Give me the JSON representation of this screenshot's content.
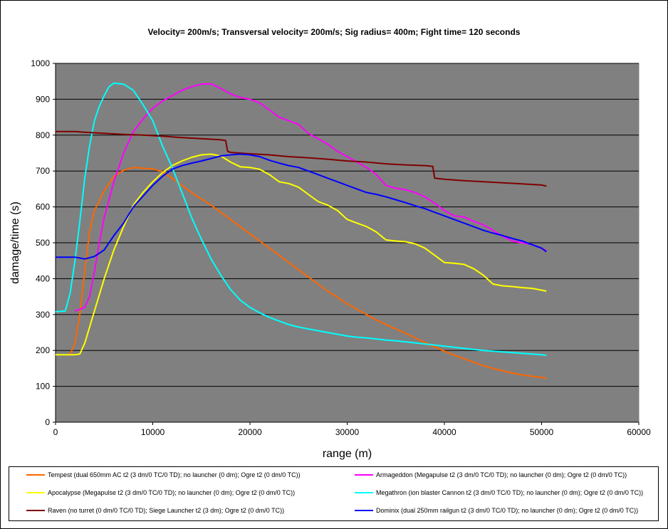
{
  "chart_data": {
    "type": "line",
    "title": "Velocity= 200m/s; Transversal velocity= 200m/s; Sig radius= 400m; Fight time= 120 seconds",
    "xlabel": "range (m)",
    "ylabel": "damage/time (s)",
    "xlim": [
      0,
      60000
    ],
    "ylim": [
      0,
      1000
    ],
    "xticks": [
      0,
      10000,
      20000,
      30000,
      40000,
      50000,
      60000
    ],
    "yticks": [
      0,
      100,
      200,
      300,
      400,
      500,
      600,
      700,
      800,
      900,
      1000
    ],
    "grid": true,
    "legend_position": "bottom",
    "series": [
      {
        "name": "Tempest (dual 650mm AC t2 (3 dm/0 TC/0 TD); no launcher (0 dm); Ogre t2 (0 dm/0 TC))",
        "color": "#FF6600",
        "points": [
          [
            1500,
            190
          ],
          [
            2000,
            220
          ],
          [
            2500,
            300
          ],
          [
            3000,
            420
          ],
          [
            3500,
            530
          ],
          [
            4000,
            590
          ],
          [
            5000,
            645
          ],
          [
            6000,
            685
          ],
          [
            7000,
            702
          ],
          [
            8000,
            710
          ],
          [
            9000,
            708
          ],
          [
            10000,
            706
          ],
          [
            11000,
            698
          ],
          [
            12000,
            680
          ],
          [
            13000,
            660
          ],
          [
            14000,
            640
          ],
          [
            15000,
            622
          ],
          [
            16000,
            605
          ],
          [
            17000,
            585
          ],
          [
            18000,
            565
          ],
          [
            19000,
            545
          ],
          [
            20000,
            525
          ],
          [
            21000,
            505
          ],
          [
            22000,
            485
          ],
          [
            23000,
            465
          ],
          [
            24000,
            445
          ],
          [
            25000,
            425
          ],
          [
            26000,
            405
          ],
          [
            27000,
            385
          ],
          [
            28000,
            365
          ],
          [
            29000,
            348
          ],
          [
            30000,
            330
          ],
          [
            31000,
            315
          ],
          [
            32000,
            300
          ],
          [
            33000,
            285
          ],
          [
            34000,
            272
          ],
          [
            35000,
            260
          ],
          [
            36000,
            248
          ],
          [
            37000,
            235
          ],
          [
            38000,
            222
          ],
          [
            39000,
            210
          ],
          [
            40000,
            198
          ],
          [
            41000,
            187
          ],
          [
            42000,
            177
          ],
          [
            43000,
            167
          ],
          [
            44000,
            158
          ],
          [
            45000,
            150
          ],
          [
            46000,
            143
          ],
          [
            47000,
            137
          ],
          [
            48000,
            132
          ],
          [
            49000,
            128
          ],
          [
            50000,
            125
          ],
          [
            50500,
            122
          ]
        ]
      },
      {
        "name": "Armageddon (Megapulse t2 (3 dm/0 TC/0 TD); no launcher (0 dm); Ogre t2 (0 dm/0 TC))",
        "color": "#FF00FF",
        "points": [
          [
            2000,
            310
          ],
          [
            3000,
            320
          ],
          [
            3500,
            350
          ],
          [
            4000,
            420
          ],
          [
            4500,
            500
          ],
          [
            5000,
            570
          ],
          [
            6000,
            670
          ],
          [
            7000,
            750
          ],
          [
            8000,
            810
          ],
          [
            9000,
            845
          ],
          [
            10000,
            875
          ],
          [
            11000,
            895
          ],
          [
            12000,
            910
          ],
          [
            13000,
            925
          ],
          [
            14000,
            935
          ],
          [
            15000,
            942
          ],
          [
            16000,
            943
          ],
          [
            17000,
            930
          ],
          [
            18000,
            915
          ],
          [
            19000,
            905
          ],
          [
            20000,
            900
          ],
          [
            21000,
            890
          ],
          [
            22000,
            870
          ],
          [
            23000,
            850
          ],
          [
            24000,
            840
          ],
          [
            25000,
            830
          ],
          [
            26000,
            805
          ],
          [
            27000,
            790
          ],
          [
            28000,
            775
          ],
          [
            29000,
            755
          ],
          [
            30000,
            740
          ],
          [
            31000,
            725
          ],
          [
            32000,
            710
          ],
          [
            33000,
            690
          ],
          [
            34000,
            660
          ],
          [
            35000,
            652
          ],
          [
            36000,
            648
          ],
          [
            37000,
            640
          ],
          [
            38000,
            628
          ],
          [
            39000,
            610
          ],
          [
            40000,
            590
          ],
          [
            41000,
            575
          ],
          [
            42000,
            572
          ],
          [
            43000,
            560
          ],
          [
            44000,
            550
          ],
          [
            45000,
            535
          ],
          [
            46000,
            518
          ],
          [
            47000,
            505
          ],
          [
            48000,
            500
          ],
          [
            49000,
            495
          ],
          [
            50000,
            485
          ],
          [
            50500,
            478
          ]
        ]
      },
      {
        "name": "Apocalypse (Megapulse t2 (3 dm/0 TC/0 TD); no launcher (0 dm); Ogre t2 (0 dm/0 TC))",
        "color": "#FFFF00",
        "points": [
          [
            0,
            188
          ],
          [
            2000,
            188
          ],
          [
            2500,
            190
          ],
          [
            3000,
            220
          ],
          [
            4000,
            310
          ],
          [
            5000,
            400
          ],
          [
            6000,
            480
          ],
          [
            7000,
            545
          ],
          [
            8000,
            605
          ],
          [
            9000,
            640
          ],
          [
            10000,
            670
          ],
          [
            11000,
            695
          ],
          [
            12000,
            715
          ],
          [
            13000,
            728
          ],
          [
            14000,
            738
          ],
          [
            15000,
            745
          ],
          [
            16000,
            747
          ],
          [
            17000,
            742
          ],
          [
            18000,
            725
          ],
          [
            19000,
            712
          ],
          [
            20000,
            710
          ],
          [
            21000,
            705
          ],
          [
            22000,
            690
          ],
          [
            23000,
            670
          ],
          [
            24000,
            665
          ],
          [
            25000,
            655
          ],
          [
            26000,
            635
          ],
          [
            27000,
            615
          ],
          [
            28000,
            605
          ],
          [
            29000,
            590
          ],
          [
            30000,
            565
          ],
          [
            31000,
            555
          ],
          [
            32000,
            545
          ],
          [
            33000,
            530
          ],
          [
            34000,
            508
          ],
          [
            35000,
            505
          ],
          [
            36000,
            503
          ],
          [
            37000,
            497
          ],
          [
            38000,
            485
          ],
          [
            39000,
            465
          ],
          [
            40000,
            445
          ],
          [
            41000,
            443
          ],
          [
            42000,
            440
          ],
          [
            43000,
            428
          ],
          [
            44000,
            410
          ],
          [
            45000,
            385
          ],
          [
            46000,
            380
          ],
          [
            47000,
            378
          ],
          [
            48000,
            375
          ],
          [
            49000,
            373
          ],
          [
            50000,
            368
          ],
          [
            50500,
            365
          ]
        ]
      },
      {
        "name": "Megathron (ion blaster Cannon t2 (3 dm/0 TC/0 TD); no launcher (0 dm); Ogre t2 (0 dm/0 TC))",
        "color": "#00FFFF",
        "points": [
          [
            0,
            308
          ],
          [
            1000,
            310
          ],
          [
            1500,
            360
          ],
          [
            2000,
            450
          ],
          [
            2500,
            560
          ],
          [
            3000,
            680
          ],
          [
            3500,
            770
          ],
          [
            4000,
            840
          ],
          [
            4500,
            880
          ],
          [
            5000,
            910
          ],
          [
            5500,
            935
          ],
          [
            6000,
            945
          ],
          [
            7000,
            942
          ],
          [
            8000,
            925
          ],
          [
            9000,
            885
          ],
          [
            10000,
            840
          ],
          [
            11000,
            770
          ],
          [
            12000,
            710
          ],
          [
            13000,
            640
          ],
          [
            14000,
            570
          ],
          [
            15000,
            510
          ],
          [
            16000,
            455
          ],
          [
            17000,
            410
          ],
          [
            18000,
            370
          ],
          [
            19000,
            340
          ],
          [
            20000,
            320
          ],
          [
            21000,
            305
          ],
          [
            22000,
            292
          ],
          [
            23000,
            282
          ],
          [
            24000,
            272
          ],
          [
            25000,
            265
          ],
          [
            26000,
            260
          ],
          [
            27000,
            255
          ],
          [
            28000,
            250
          ],
          [
            29000,
            245
          ],
          [
            30000,
            240
          ],
          [
            31000,
            237
          ],
          [
            32000,
            235
          ],
          [
            33000,
            232
          ],
          [
            34000,
            229
          ],
          [
            35000,
            227
          ],
          [
            36000,
            224
          ],
          [
            37000,
            221
          ],
          [
            38000,
            218
          ],
          [
            39000,
            215
          ],
          [
            40000,
            212
          ],
          [
            41000,
            209
          ],
          [
            42000,
            206
          ],
          [
            43000,
            203
          ],
          [
            44000,
            200
          ],
          [
            45000,
            198
          ],
          [
            46000,
            196
          ],
          [
            47000,
            194
          ],
          [
            48000,
            192
          ],
          [
            49000,
            190
          ],
          [
            50000,
            188
          ],
          [
            50500,
            186
          ]
        ]
      },
      {
        "name": "Raven (no turret (0 dm/0 TC/0 TD); Siege Launcher t2 (3 dm); Ogre t2 (0 dm/0 TC))",
        "color": "#800000",
        "points": [
          [
            0,
            810
          ],
          [
            2000,
            810
          ],
          [
            3000,
            808
          ],
          [
            5000,
            805
          ],
          [
            7000,
            802
          ],
          [
            9000,
            800
          ],
          [
            11000,
            797
          ],
          [
            13000,
            793
          ],
          [
            15000,
            790
          ],
          [
            17000,
            787
          ],
          [
            17500,
            785
          ],
          [
            17700,
            755
          ],
          [
            18000,
            752
          ],
          [
            20000,
            748
          ],
          [
            22000,
            745
          ],
          [
            24000,
            740
          ],
          [
            26000,
            737
          ],
          [
            28000,
            733
          ],
          [
            30000,
            728
          ],
          [
            32000,
            725
          ],
          [
            34000,
            720
          ],
          [
            36000,
            717
          ],
          [
            38000,
            715
          ],
          [
            38800,
            713
          ],
          [
            39000,
            680
          ],
          [
            40000,
            677
          ],
          [
            42000,
            673
          ],
          [
            44000,
            670
          ],
          [
            46000,
            667
          ],
          [
            48000,
            664
          ],
          [
            50000,
            661
          ],
          [
            50500,
            658
          ]
        ]
      },
      {
        "name": "Dominix (dual 250mm railgun t2 (3 dm/0 TC/0 TD); no launcher (0 dm); Ogre t2 (0 dm/0 TC))",
        "color": "#0000FF",
        "points": [
          [
            0,
            460
          ],
          [
            2000,
            460
          ],
          [
            3000,
            455
          ],
          [
            4000,
            462
          ],
          [
            5000,
            480
          ],
          [
            6000,
            520
          ],
          [
            7000,
            555
          ],
          [
            8000,
            600
          ],
          [
            9000,
            630
          ],
          [
            10000,
            660
          ],
          [
            11000,
            685
          ],
          [
            12000,
            705
          ],
          [
            13000,
            715
          ],
          [
            14000,
            722
          ],
          [
            15000,
            728
          ],
          [
            16000,
            735
          ],
          [
            17000,
            742
          ],
          [
            18000,
            745
          ],
          [
            19000,
            747
          ],
          [
            20000,
            745
          ],
          [
            21000,
            740
          ],
          [
            22000,
            730
          ],
          [
            23000,
            722
          ],
          [
            24000,
            715
          ],
          [
            25000,
            710
          ],
          [
            26000,
            700
          ],
          [
            27000,
            690
          ],
          [
            28000,
            680
          ],
          [
            29000,
            670
          ],
          [
            30000,
            660
          ],
          [
            31000,
            650
          ],
          [
            32000,
            640
          ],
          [
            33000,
            635
          ],
          [
            34000,
            628
          ],
          [
            35000,
            620
          ],
          [
            36000,
            612
          ],
          [
            37000,
            603
          ],
          [
            38000,
            595
          ],
          [
            39000,
            585
          ],
          [
            40000,
            575
          ],
          [
            41000,
            565
          ],
          [
            42000,
            555
          ],
          [
            43000,
            545
          ],
          [
            44000,
            535
          ],
          [
            45000,
            527
          ],
          [
            46000,
            520
          ],
          [
            47000,
            512
          ],
          [
            48000,
            505
          ],
          [
            49000,
            495
          ],
          [
            50000,
            485
          ],
          [
            50500,
            475
          ]
        ]
      }
    ]
  }
}
